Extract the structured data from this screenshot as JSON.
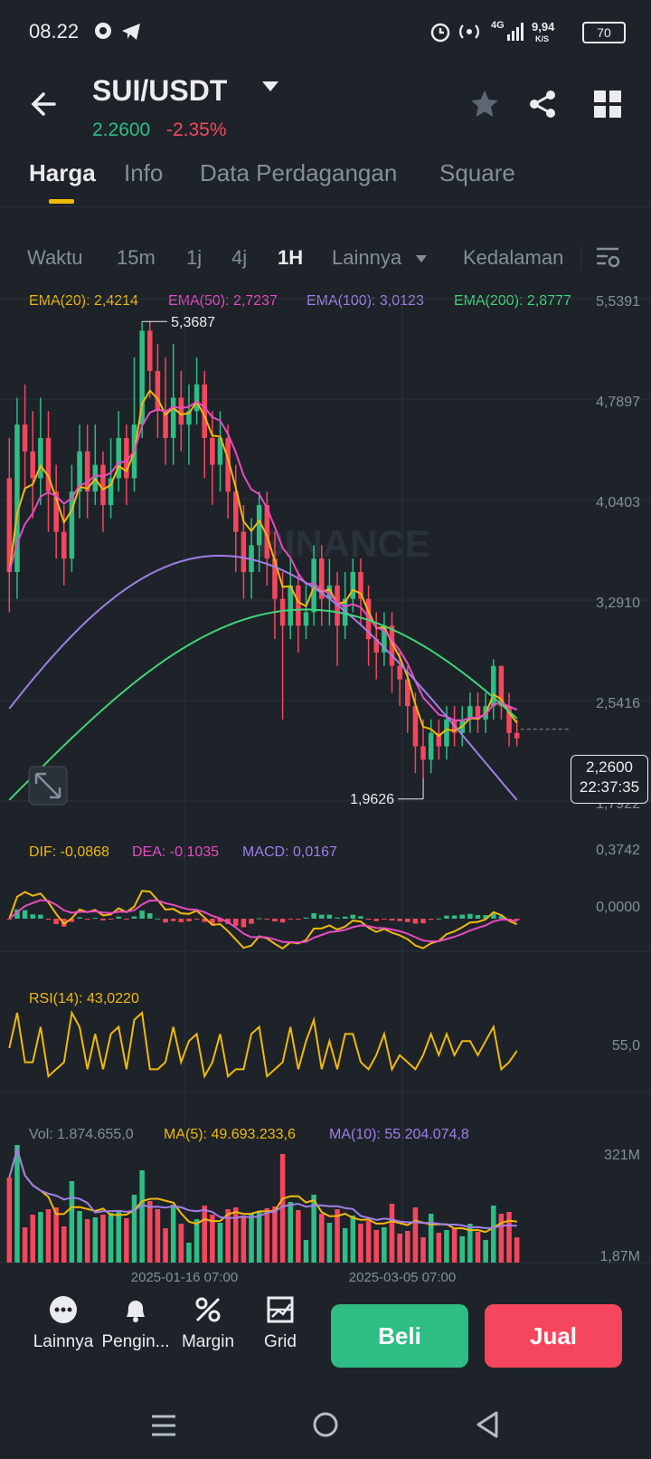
{
  "status_bar": {
    "time": "08.22",
    "icons": [
      "gojek-icon",
      "telegram-icon",
      "alarm-icon",
      "hotspot-icon",
      "4g-signal-icon"
    ],
    "speed": "9,94",
    "speed_unit": "K/S",
    "network": "4G",
    "battery": "70"
  },
  "header": {
    "pair": "SUI/USDT",
    "price": "2.2600",
    "change": "-2.35%",
    "price_color": "#2ebd85",
    "change_color": "#f6465d"
  },
  "tabs": [
    {
      "label": "Harga",
      "active": true
    },
    {
      "label": "Info",
      "active": false
    },
    {
      "label": "Data Perdagangan",
      "active": false
    },
    {
      "label": "Square",
      "active": false
    }
  ],
  "timeframes": {
    "items": [
      "Waktu",
      "15m",
      "1j",
      "4j",
      "1H",
      "Lainnya",
      "Kedalaman"
    ],
    "active": "1H"
  },
  "indicators": {
    "ema20": "EMA(20): 2,4214",
    "ema50": "EMA(50): 2,7237",
    "ema100": "EMA(100): 3,0123",
    "ema200": "EMA(200): 2,8777",
    "dif": "DIF: -0,0868",
    "dea": "DEA: -0,1035",
    "macd": "MACD: 0,0167",
    "rsi": "RSI(14): 43,0220",
    "vol": "Vol: 1.874.655,0",
    "ma5": "MA(5): 49.693.233,6",
    "ma10": "MA(10): 55.204.074,8"
  },
  "colors": {
    "up": "#2ebd85",
    "down": "#f6465d",
    "ema20": "#f0b90b",
    "ema50": "#e84bc4",
    "ema100": "#a07ee8",
    "ema200": "#3fd57a",
    "accent": "#f0b90b"
  },
  "chart_data": {
    "type": "candlestick",
    "price_axis": [
      "5,5391",
      "4,7897",
      "4,0403",
      "3,2910",
      "2,5416",
      "1,7922"
    ],
    "macd_axis": [
      "0,3742",
      "0,0000"
    ],
    "rsi_axis": [
      "55,0"
    ],
    "volume_axis": [
      "321M",
      "1,87M"
    ],
    "x_labels": [
      "2025-01-16 07:00",
      "2025-03-05 07:00"
    ],
    "high_label": "5,3687",
    "low_label": "1,9626",
    "last_price": "2,2600",
    "countdown": "22:37:35",
    "watermark": "BINANCE",
    "candles": [
      [
        4.2,
        3.5,
        4.5,
        3.2
      ],
      [
        3.5,
        4.6,
        4.8,
        3.3
      ],
      [
        4.6,
        4.4,
        4.9,
        4.1
      ],
      [
        4.4,
        4.2,
        4.7,
        3.9
      ],
      [
        4.2,
        4.5,
        4.8,
        4.0
      ],
      [
        4.5,
        4.1,
        4.7,
        3.8
      ],
      [
        4.1,
        3.8,
        4.3,
        3.6
      ],
      [
        3.8,
        3.6,
        4.0,
        3.4
      ],
      [
        3.6,
        4.1,
        4.3,
        3.5
      ],
      [
        4.1,
        4.4,
        4.6,
        3.9
      ],
      [
        4.4,
        4.1,
        4.6,
        3.9
      ],
      [
        4.1,
        4.3,
        4.6,
        4.0
      ],
      [
        4.3,
        4.0,
        4.4,
        3.8
      ],
      [
        4.0,
        4.2,
        4.5,
        3.9
      ],
      [
        4.2,
        4.5,
        4.7,
        4.1
      ],
      [
        4.5,
        4.2,
        4.6,
        4.0
      ],
      [
        4.2,
        4.6,
        5.1,
        4.1
      ],
      [
        4.6,
        5.3,
        5.37,
        4.5
      ],
      [
        5.3,
        5.0,
        5.37,
        4.8
      ],
      [
        5.0,
        4.7,
        5.2,
        4.5
      ],
      [
        4.7,
        4.5,
        5.1,
        4.3
      ],
      [
        4.5,
        4.8,
        5.2,
        4.3
      ],
      [
        4.8,
        4.6,
        5.0,
        4.4
      ],
      [
        4.6,
        4.7,
        4.9,
        4.3
      ],
      [
        4.7,
        4.9,
        5.1,
        4.6
      ],
      [
        4.9,
        4.5,
        5.0,
        4.2
      ],
      [
        4.5,
        4.3,
        4.7,
        4.0
      ],
      [
        4.3,
        4.5,
        4.7,
        4.1
      ],
      [
        4.5,
        4.1,
        4.6,
        3.9
      ],
      [
        4.1,
        3.8,
        4.3,
        3.5
      ],
      [
        3.8,
        3.5,
        4.0,
        3.3
      ],
      [
        3.5,
        3.7,
        3.9,
        3.3
      ],
      [
        3.7,
        4.0,
        4.1,
        3.5
      ],
      [
        4.0,
        3.6,
        4.1,
        3.4
      ],
      [
        3.6,
        3.3,
        3.8,
        3.0
      ],
      [
        3.3,
        3.1,
        3.5,
        2.4
      ],
      [
        3.1,
        3.4,
        3.6,
        3.0
      ],
      [
        3.4,
        3.1,
        3.5,
        2.9
      ],
      [
        3.1,
        3.2,
        3.4,
        3.0
      ],
      [
        3.2,
        3.6,
        3.7,
        3.1
      ],
      [
        3.6,
        3.3,
        3.7,
        3.1
      ],
      [
        3.3,
        3.4,
        3.6,
        3.1
      ],
      [
        3.4,
        3.1,
        3.5,
        2.8
      ],
      [
        3.1,
        3.3,
        3.5,
        3.0
      ],
      [
        3.3,
        3.5,
        3.6,
        3.2
      ],
      [
        3.5,
        3.3,
        3.6,
        3.1
      ],
      [
        3.3,
        3.0,
        3.4,
        2.8
      ],
      [
        3.0,
        2.9,
        3.2,
        2.7
      ],
      [
        2.9,
        3.1,
        3.2,
        2.8
      ],
      [
        3.1,
        2.8,
        3.2,
        2.6
      ],
      [
        2.8,
        2.7,
        2.9,
        2.5
      ],
      [
        2.7,
        2.5,
        2.8,
        2.3
      ],
      [
        2.5,
        2.2,
        2.6,
        2.0
      ],
      [
        2.2,
        2.1,
        2.4,
        1.96
      ],
      [
        2.1,
        2.3,
        2.4,
        2.0
      ],
      [
        2.3,
        2.2,
        2.4,
        2.1
      ],
      [
        2.2,
        2.4,
        2.5,
        2.1
      ],
      [
        2.4,
        2.3,
        2.5,
        2.2
      ],
      [
        2.3,
        2.4,
        2.5,
        2.2
      ],
      [
        2.4,
        2.5,
        2.6,
        2.3
      ],
      [
        2.5,
        2.4,
        2.6,
        2.3
      ],
      [
        2.4,
        2.5,
        2.6,
        2.3
      ],
      [
        2.5,
        2.8,
        2.85,
        2.4
      ],
      [
        2.8,
        2.5,
        2.8,
        2.4
      ],
      [
        2.5,
        2.3,
        2.6,
        2.2
      ],
      [
        2.3,
        2.26,
        2.4,
        2.2
      ]
    ]
  },
  "bottom_bar": {
    "items": [
      {
        "label": "Lainnya",
        "icon": "more-icon"
      },
      {
        "label": "Pengin...",
        "icon": "bell-icon"
      },
      {
        "label": "Margin",
        "icon": "margin-icon"
      },
      {
        "label": "Grid",
        "icon": "grid-bot-icon"
      }
    ],
    "buy": "Beli",
    "sell": "Jual"
  }
}
